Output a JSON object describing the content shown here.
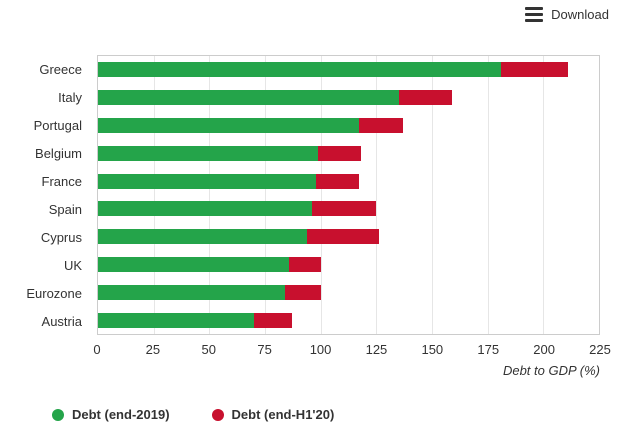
{
  "toolbar": {
    "download_label": "Download"
  },
  "colors": {
    "green": "#24a44a",
    "red": "#c8102e",
    "grid": "#e6e6e6",
    "plot_border": "#cccccc",
    "text": "#333333"
  },
  "chart_data": {
    "type": "bar",
    "title": "",
    "xlabel": "Debt to GDP (%)",
    "ylabel": "",
    "xlim": [
      0,
      225
    ],
    "xticks": [
      0,
      25,
      50,
      75,
      100,
      125,
      150,
      175,
      200,
      225
    ],
    "grid": true,
    "legend_position": "bottom-left",
    "categories": [
      "Greece",
      "Italy",
      "Portugal",
      "Belgium",
      "France",
      "Spain",
      "Cyprus",
      "UK",
      "Eurozone",
      "Austria"
    ],
    "series": [
      {
        "name": "Debt (end-2019)",
        "color": "#24a44a",
        "values": [
          181,
          135,
          117,
          99,
          98,
          96,
          94,
          86,
          84,
          70
        ]
      },
      {
        "name": "Debt (end-H1'20)",
        "color": "#c8102e",
        "values": [
          211,
          159,
          137,
          118,
          117,
          125,
          126,
          100,
          100,
          87
        ]
      }
    ]
  }
}
